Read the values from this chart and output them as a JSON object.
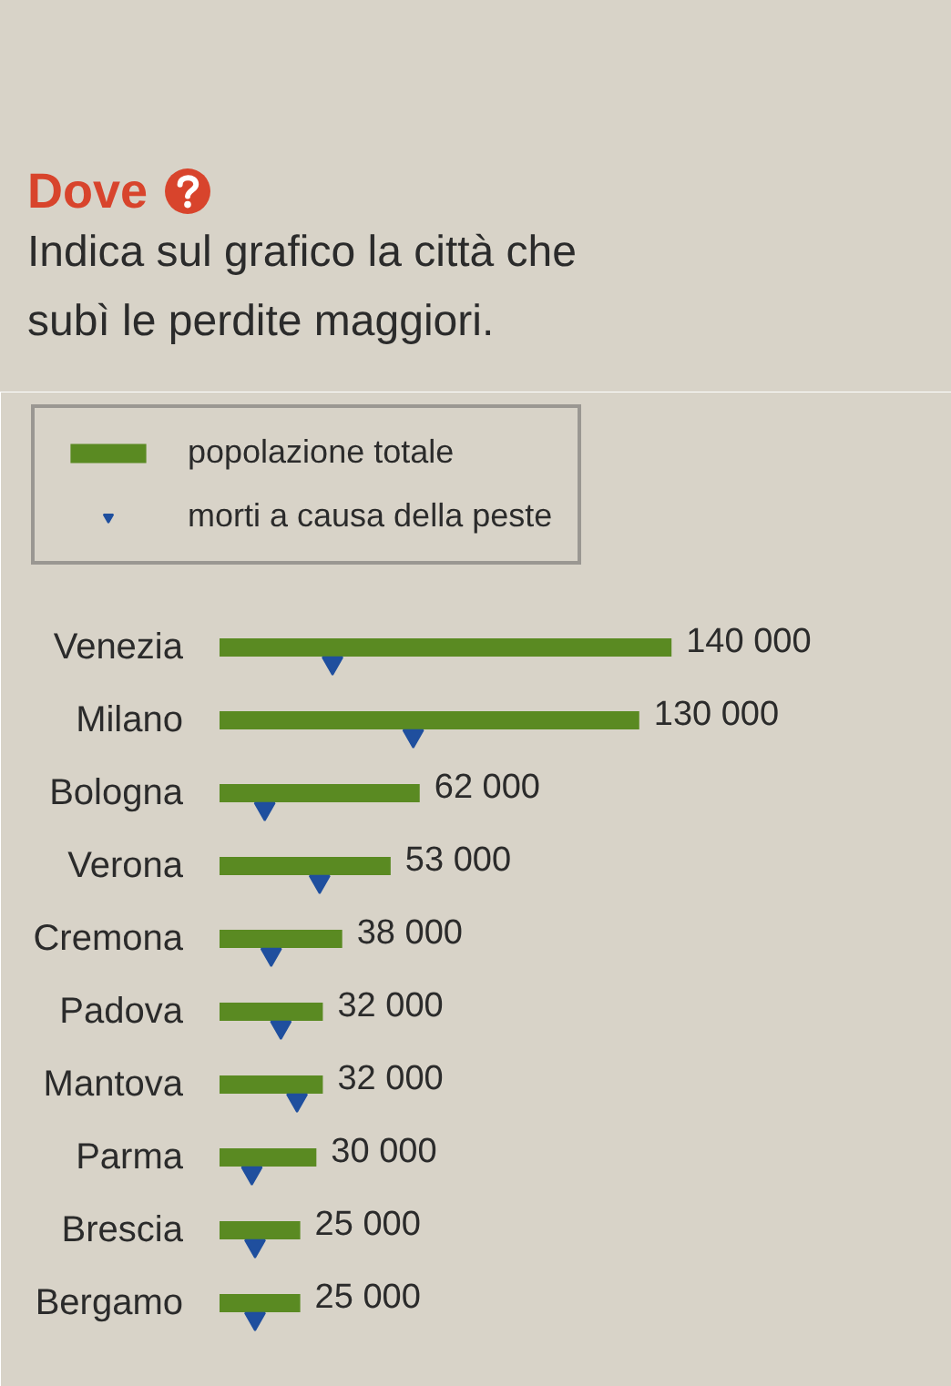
{
  "chart_data": {
    "type": "bar",
    "orientation": "horizontal",
    "title": "Dove",
    "subtitle": "Indica sul grafico la città che subì le perdite maggiori.",
    "categories": [
      "Venezia",
      "Milano",
      "Bologna",
      "Verona",
      "Cremona",
      "Padova",
      "Mantova",
      "Parma",
      "Brescia",
      "Bergamo"
    ],
    "series": [
      {
        "name": "popolazione totale",
        "color": "#5a8a22",
        "values": [
          140000,
          130000,
          62000,
          53000,
          38000,
          32000,
          32000,
          30000,
          25000,
          25000
        ],
        "value_labels": [
          "140 000",
          "130 000",
          "62 000",
          "53 000",
          "38 000",
          "32 000",
          "32 000",
          "30 000",
          "25 000",
          "25 000"
        ]
      },
      {
        "name": "morti a causa della peste",
        "type": "scatter",
        "marker": "triangle",
        "color": "#1f4f9e",
        "values": [
          35000,
          60000,
          14000,
          31000,
          16000,
          19000,
          24000,
          10000,
          11000,
          11000
        ]
      }
    ],
    "legend": "top left",
    "tick_labels": "y"
  }
}
